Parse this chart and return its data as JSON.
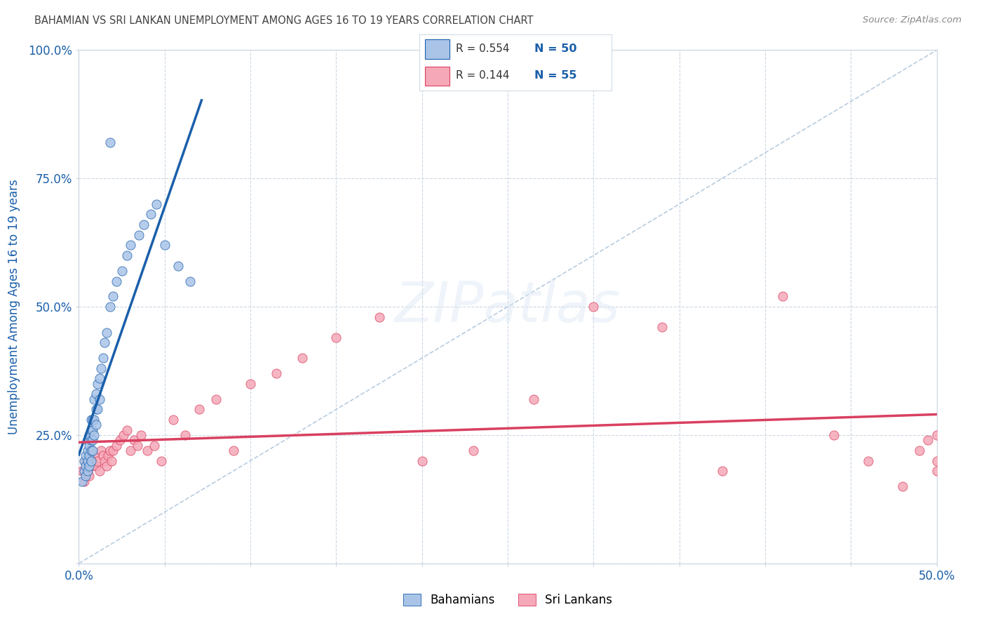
{
  "title": "BAHAMIAN VS SRI LANKAN UNEMPLOYMENT AMONG AGES 16 TO 19 YEARS CORRELATION CHART",
  "source": "Source: ZipAtlas.com",
  "ylabel": "Unemployment Among Ages 16 to 19 years",
  "xlim": [
    0.0,
    0.5
  ],
  "ylim": [
    0.0,
    1.0
  ],
  "xticks": [
    0.0,
    0.05,
    0.1,
    0.15,
    0.2,
    0.25,
    0.3,
    0.35,
    0.4,
    0.45,
    0.5
  ],
  "xticklabels": [
    "0.0%",
    "",
    "",
    "",
    "",
    "",
    "",
    "",
    "",
    "",
    "50.0%"
  ],
  "yticks": [
    0.0,
    0.25,
    0.5,
    0.75,
    1.0
  ],
  "yticklabels": [
    "",
    "25.0%",
    "50.0%",
    "75.0%",
    "100.0%"
  ],
  "bahamian_color": "#aac4e8",
  "srilankan_color": "#f5a8b8",
  "bahamian_line_color": "#1a5faa",
  "srilankan_line_color": "#d94060",
  "diagonal_color": "#b8cce0",
  "background_color": "#ffffff",
  "grid_color": "#ccd8e4",
  "title_color": "#444444",
  "source_color": "#888888",
  "legend_text_r_color": "#333333",
  "legend_text_n_color": "#1a5faa",
  "axis_label_color": "#1a5faa",
  "bahamians_x": [
    0.002,
    0.003,
    0.003,
    0.004,
    0.004,
    0.004,
    0.005,
    0.005,
    0.005,
    0.005,
    0.006,
    0.006,
    0.006,
    0.006,
    0.007,
    0.007,
    0.007,
    0.007,
    0.007,
    0.008,
    0.008,
    0.008,
    0.008,
    0.009,
    0.009,
    0.009,
    0.01,
    0.01,
    0.01,
    0.011,
    0.011,
    0.012,
    0.012,
    0.013,
    0.014,
    0.015,
    0.016,
    0.018,
    0.02,
    0.022,
    0.025,
    0.028,
    0.03,
    0.035,
    0.038,
    0.042,
    0.045,
    0.05,
    0.058,
    0.065
  ],
  "bahamians_y": [
    0.16,
    0.18,
    0.2,
    0.17,
    0.19,
    0.21,
    0.18,
    0.2,
    0.22,
    0.24,
    0.19,
    0.21,
    0.23,
    0.25,
    0.2,
    0.22,
    0.24,
    0.26,
    0.28,
    0.22,
    0.24,
    0.26,
    0.28,
    0.25,
    0.28,
    0.32,
    0.27,
    0.3,
    0.33,
    0.3,
    0.35,
    0.32,
    0.36,
    0.38,
    0.4,
    0.43,
    0.45,
    0.5,
    0.52,
    0.55,
    0.57,
    0.6,
    0.62,
    0.64,
    0.66,
    0.68,
    0.7,
    0.62,
    0.58,
    0.55
  ],
  "bahamians_outlier_x": [
    0.018
  ],
  "bahamians_outlier_y": [
    0.82
  ],
  "srilankans_x": [
    0.002,
    0.003,
    0.004,
    0.005,
    0.006,
    0.007,
    0.008,
    0.009,
    0.01,
    0.011,
    0.012,
    0.013,
    0.014,
    0.015,
    0.016,
    0.017,
    0.018,
    0.019,
    0.02,
    0.022,
    0.024,
    0.026,
    0.028,
    0.03,
    0.032,
    0.034,
    0.036,
    0.04,
    0.044,
    0.048,
    0.055,
    0.062,
    0.07,
    0.08,
    0.09,
    0.1,
    0.115,
    0.13,
    0.15,
    0.175,
    0.2,
    0.23,
    0.265,
    0.3,
    0.34,
    0.375,
    0.41,
    0.44,
    0.46,
    0.48,
    0.49,
    0.495,
    0.5,
    0.5,
    0.5
  ],
  "srilankans_y": [
    0.18,
    0.16,
    0.2,
    0.18,
    0.17,
    0.19,
    0.2,
    0.21,
    0.19,
    0.2,
    0.18,
    0.22,
    0.21,
    0.2,
    0.19,
    0.21,
    0.22,
    0.2,
    0.22,
    0.23,
    0.24,
    0.25,
    0.26,
    0.22,
    0.24,
    0.23,
    0.25,
    0.22,
    0.23,
    0.2,
    0.28,
    0.25,
    0.3,
    0.32,
    0.22,
    0.35,
    0.37,
    0.4,
    0.44,
    0.48,
    0.2,
    0.22,
    0.32,
    0.5,
    0.46,
    0.18,
    0.52,
    0.25,
    0.2,
    0.15,
    0.22,
    0.24,
    0.18,
    0.25,
    0.2
  ]
}
